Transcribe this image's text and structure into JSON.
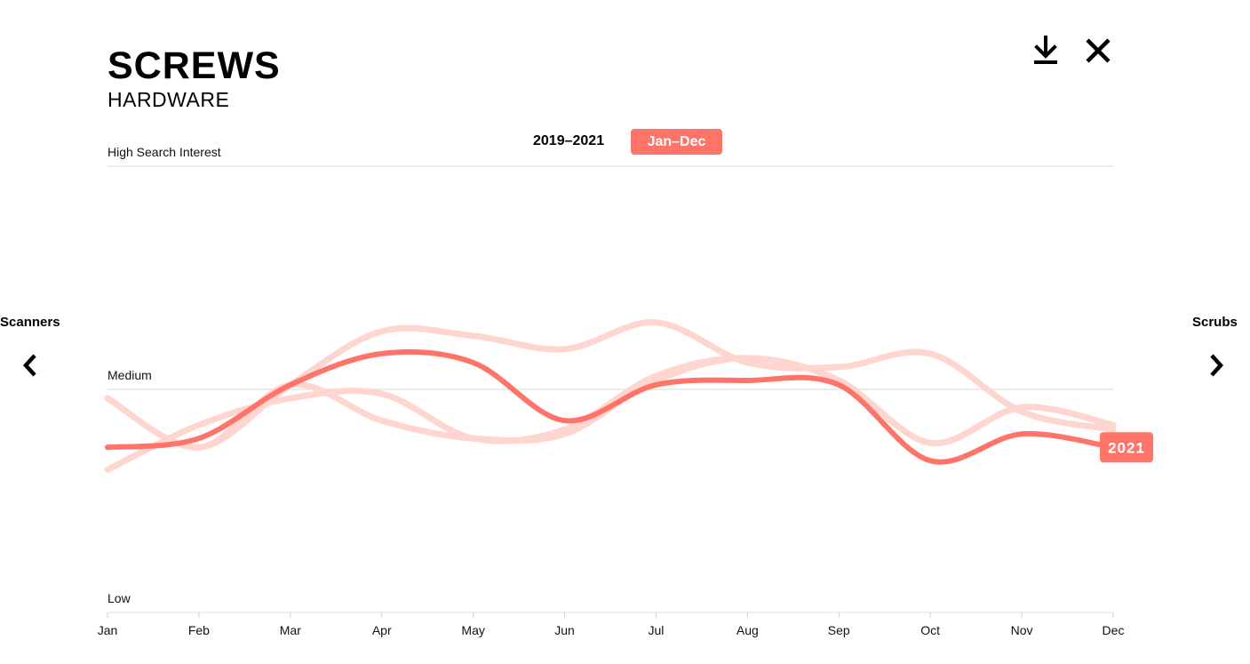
{
  "header": {
    "title": "SCREWS",
    "subtitle": "HARDWARE",
    "download_icon": "download-icon",
    "close_icon": "close-icon"
  },
  "range": {
    "years": "2019–2021",
    "months": "Jan–Dec"
  },
  "navigation": {
    "prev_label": "Scanners",
    "next_label": "Scrubs",
    "prev_icon": "chevron-left-icon",
    "next_icon": "chevron-right-icon"
  },
  "colors": {
    "accent": "#ff7469",
    "faded": "#ffd5d0",
    "gridline": "#d9d9d9"
  },
  "chart_data": {
    "type": "line",
    "title": "SCREWS",
    "subtitle": "HARDWARE",
    "xlabel": "",
    "ylabel": "",
    "categories": [
      "Jan",
      "Feb",
      "Mar",
      "Apr",
      "May",
      "Jun",
      "Jul",
      "Aug",
      "Sep",
      "Oct",
      "Nov",
      "Dec"
    ],
    "ylim": [
      0,
      100
    ],
    "levels": [
      {
        "value": 100,
        "label": "High Search Interest"
      },
      {
        "value": 50,
        "label": "Medium"
      },
      {
        "value": 0,
        "label": "Low"
      }
    ],
    "grid": true,
    "series": [
      {
        "name": "",
        "emphasis": false,
        "values": [
          48,
          37,
          51,
          63,
          62,
          59,
          65,
          56,
          55,
          58,
          45,
          41
        ]
      },
      {
        "name": "",
        "emphasis": false,
        "values": [
          32,
          42,
          48,
          49,
          39,
          41,
          53,
          57,
          52,
          38,
          46,
          42
        ]
      },
      {
        "name": "",
        "emphasis": false,
        "values": [
          48,
          37,
          51,
          43,
          39,
          40,
          52,
          57,
          52,
          38,
          46,
          42
        ]
      },
      {
        "name": "2021",
        "emphasis": true,
        "values": [
          37,
          39,
          51,
          58,
          56,
          43,
          51,
          52,
          51,
          34,
          40,
          37
        ]
      }
    ],
    "end_label": "2021"
  }
}
